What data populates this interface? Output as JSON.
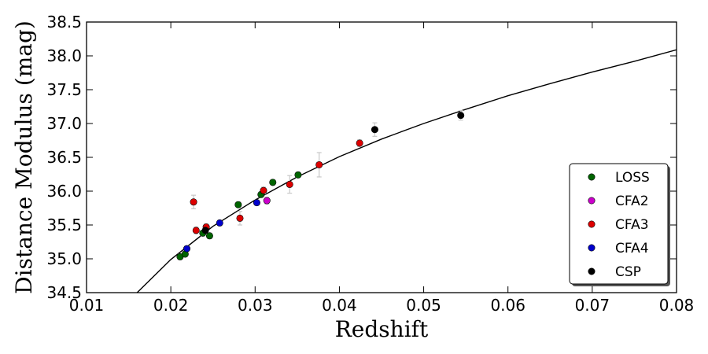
{
  "chart_data": {
    "type": "scatter",
    "xlabel": "Redshift",
    "ylabel": "Distance Modulus (mag)",
    "xlim": [
      0.01,
      0.08
    ],
    "ylim": [
      34.5,
      38.5
    ],
    "xticks": [
      "0.01",
      "0.02",
      "0.03",
      "0.04",
      "0.05",
      "0.06",
      "0.07",
      "0.08"
    ],
    "yticks": [
      "34.5",
      "35.0",
      "35.5",
      "36.0",
      "36.5",
      "37.0",
      "37.5",
      "38.0",
      "38.5"
    ],
    "grid": false,
    "legend_position": "lower right",
    "series": [
      {
        "name": "LOSS",
        "color": "#006400",
        "x": [
          0.0211,
          0.0217,
          0.0238,
          0.0246,
          0.028,
          0.0307,
          0.0321,
          0.0351
        ],
        "y": [
          35.03,
          35.07,
          35.38,
          35.34,
          35.8,
          35.95,
          36.13,
          36.24
        ],
        "yerr": [
          0.04,
          0.04,
          0.04,
          0.04,
          0.04,
          0.04,
          0.04,
          0.04
        ]
      },
      {
        "name": "CFA2",
        "color": "#cc00cc",
        "x": [
          0.0314
        ],
        "y": [
          35.86
        ],
        "yerr": [
          0.05
        ]
      },
      {
        "name": "CFA3",
        "color": "#dd0000",
        "x": [
          0.0227,
          0.023,
          0.0242,
          0.0282,
          0.031,
          0.0341,
          0.0376,
          0.0424
        ],
        "y": [
          35.84,
          35.42,
          35.47,
          35.6,
          36.01,
          36.1,
          36.39,
          36.71
        ],
        "yerr": [
          0.1,
          0.05,
          0.05,
          0.1,
          0.05,
          0.13,
          0.18,
          0.05
        ]
      },
      {
        "name": "CFA4",
        "color": "#0000cc",
        "x": [
          0.0219,
          0.0258,
          0.0302
        ],
        "y": [
          35.15,
          35.53,
          35.83
        ],
        "yerr": [
          0.04,
          0.04,
          0.04
        ]
      },
      {
        "name": "CSP",
        "color": "#000000",
        "x": [
          0.0241,
          0.0442,
          0.0544
        ],
        "y": [
          35.42,
          36.91,
          37.12
        ],
        "yerr": [
          0.04,
          0.1,
          0.07
        ]
      }
    ],
    "fit_curve": {
      "x": [
        0.016,
        0.02,
        0.025,
        0.03,
        0.035,
        0.04,
        0.045,
        0.05,
        0.055,
        0.06,
        0.065,
        0.07,
        0.075,
        0.08
      ],
      "y": [
        34.5,
        34.99,
        35.48,
        35.87,
        36.21,
        36.51,
        36.77,
        37.0,
        37.21,
        37.41,
        37.59,
        37.76,
        37.92,
        38.09
      ]
    }
  }
}
